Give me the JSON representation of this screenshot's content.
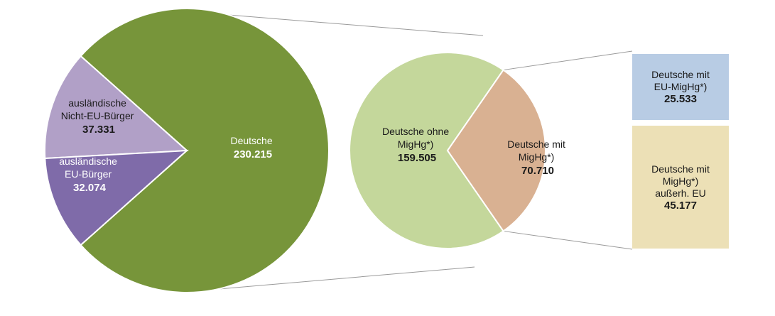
{
  "colors": {
    "deutsche": "#77953a",
    "nicht_eu": "#b1a0c7",
    "eu": "#7f6ba9",
    "ohne_mighg": "#c4d79b",
    "mit_mighg": "#d9b192",
    "box_eu": "#b8cce4",
    "box_noneu": "#ece0b6",
    "connector": "#9a9a9a"
  },
  "chart_data": [
    {
      "type": "pie",
      "slices": [
        {
          "label": "Deutsche",
          "value": 230215,
          "display": "230.215"
        },
        {
          "label": "ausländische Nicht-EU-Bürger",
          "value": 37331,
          "display": "37.331"
        },
        {
          "label": "ausländische EU-Bürger",
          "value": 32074,
          "display": "32.074"
        }
      ]
    },
    {
      "type": "pie",
      "slices": [
        {
          "label": "Deutsche ohne MigHg*)",
          "value": 159505,
          "display": "159.505"
        },
        {
          "label": "Deutsche mit MigHg*)",
          "value": 70710,
          "display": "70.710"
        }
      ]
    },
    {
      "type": "bar",
      "stacked": true,
      "segments": [
        {
          "label": "Deutsche mit EU-MigHg*)",
          "value": 25533,
          "display": "25.533"
        },
        {
          "label": "Deutsche mit MigHg*) außerh. EU",
          "value": 45177,
          "display": "45.177"
        }
      ]
    }
  ],
  "labels": {
    "deutsche": {
      "line1": "Deutsche",
      "value": "230.215"
    },
    "nicht_eu": {
      "line1": "ausländische",
      "line2": "Nicht-EU-Bürger",
      "value": "37.331"
    },
    "eu": {
      "line1": "ausländische",
      "line2": "EU-Bürger",
      "value": "32.074"
    },
    "ohne": {
      "line1": "Deutsche ohne",
      "line2": "MigHg*)",
      "value": "159.505"
    },
    "mit": {
      "line1": "Deutsche mit",
      "line2": "MigHg*)",
      "value": "70.710"
    },
    "box_eu": {
      "line1": "Deutsche mit",
      "line2": "EU-MigHg*)",
      "value": "25.533"
    },
    "box_noneu": {
      "line1": "Deutsche mit",
      "line2": "MigHg*)",
      "line3": "außerh. EU",
      "value": "45.177"
    }
  }
}
